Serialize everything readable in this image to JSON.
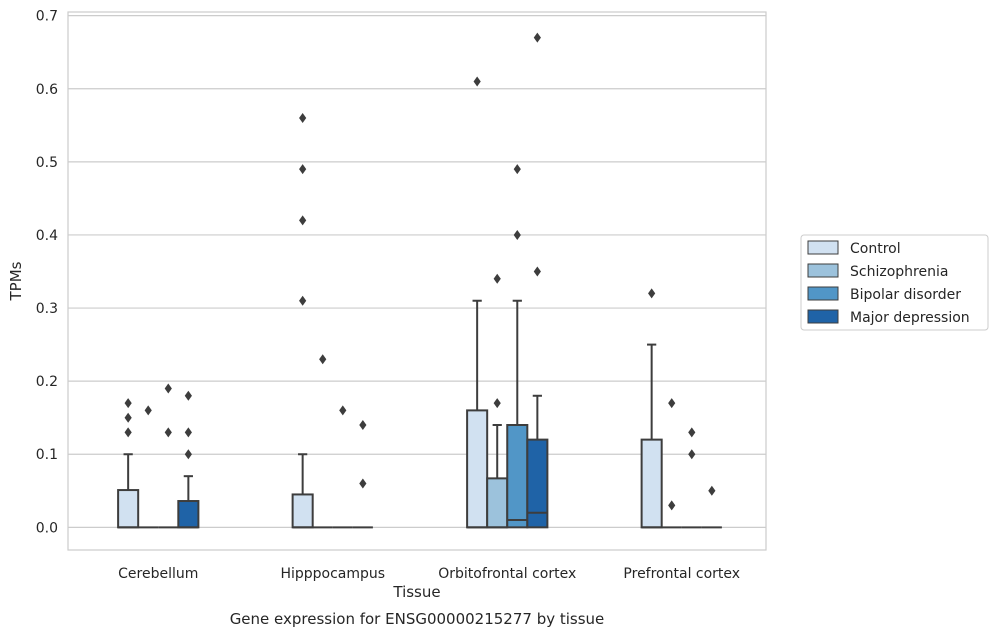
{
  "chart_data": {
    "type": "box",
    "title": "",
    "caption": "Gene expression for ENSG00000215277 by tissue",
    "xlabel": "Tissue",
    "ylabel": "TPMs",
    "ylim": [
      -0.031,
      0.705
    ],
    "yticks": [
      0.0,
      0.1,
      0.2,
      0.3,
      0.4,
      0.5,
      0.6,
      0.7
    ],
    "ytick_labels": [
      "0.0",
      "0.1",
      "0.2",
      "0.3",
      "0.4",
      "0.5",
      "0.6",
      "0.7"
    ],
    "grid": "y",
    "legend_position": "right",
    "categories": [
      "Cerebellum",
      "Hipppocampus",
      "Orbitofrontal cortex",
      "Prefrontal cortex"
    ],
    "series": [
      {
        "name": "Control",
        "color": "#d1e1f1",
        "boxes": [
          {
            "q1": 0.0,
            "median": 0.0,
            "q3": 0.051,
            "whisker_low": 0.0,
            "whisker_high": 0.1,
            "outliers": [
              0.13,
              0.15,
              0.17
            ]
          },
          {
            "q1": 0.0,
            "median": 0.0,
            "q3": 0.045,
            "whisker_low": 0.0,
            "whisker_high": 0.1,
            "outliers": [
              0.31,
              0.42,
              0.49,
              0.56
            ]
          },
          {
            "q1": 0.0,
            "median": 0.0,
            "q3": 0.16,
            "whisker_low": 0.0,
            "whisker_high": 0.31,
            "outliers": [
              0.61
            ]
          },
          {
            "q1": 0.0,
            "median": 0.0,
            "q3": 0.12,
            "whisker_low": 0.0,
            "whisker_high": 0.25,
            "outliers": [
              0.32
            ]
          }
        ]
      },
      {
        "name": "Schizophrenia",
        "color": "#9cc2dc",
        "boxes": [
          {
            "q1": 0.0,
            "median": 0.0,
            "q3": 0.0,
            "whisker_low": 0.0,
            "whisker_high": 0.0,
            "outliers": [
              0.16
            ]
          },
          {
            "q1": 0.0,
            "median": 0.0,
            "q3": 0.0,
            "whisker_low": 0.0,
            "whisker_high": 0.0,
            "outliers": [
              0.23
            ]
          },
          {
            "q1": 0.0,
            "median": 0.0,
            "q3": 0.067,
            "whisker_low": 0.0,
            "whisker_high": 0.14,
            "outliers": [
              0.17,
              0.34
            ]
          },
          {
            "q1": 0.0,
            "median": 0.0,
            "q3": 0.0,
            "whisker_low": 0.0,
            "whisker_high": 0.0,
            "outliers": [
              0.03,
              0.17
            ]
          }
        ]
      },
      {
        "name": "Bipolar disorder",
        "color": "#5196c7",
        "boxes": [
          {
            "q1": 0.0,
            "median": 0.0,
            "q3": 0.0,
            "whisker_low": 0.0,
            "whisker_high": 0.0,
            "outliers": [
              0.13,
              0.19
            ]
          },
          {
            "q1": 0.0,
            "median": 0.0,
            "q3": 0.0,
            "whisker_low": 0.0,
            "whisker_high": 0.0,
            "outliers": [
              0.16
            ]
          },
          {
            "q1": 0.0,
            "median": 0.01,
            "q3": 0.14,
            "whisker_low": 0.0,
            "whisker_high": 0.31,
            "outliers": [
              0.4,
              0.49
            ]
          },
          {
            "q1": 0.0,
            "median": 0.0,
            "q3": 0.0,
            "whisker_low": 0.0,
            "whisker_high": 0.0,
            "outliers": [
              0.1,
              0.13
            ]
          }
        ]
      },
      {
        "name": "Major depression",
        "color": "#1f63a7",
        "boxes": [
          {
            "q1": 0.0,
            "median": 0.0,
            "q3": 0.036,
            "whisker_low": 0.0,
            "whisker_high": 0.07,
            "outliers": [
              0.1,
              0.13,
              0.18
            ]
          },
          {
            "q1": 0.0,
            "median": 0.0,
            "q3": 0.0,
            "whisker_low": 0.0,
            "whisker_high": 0.0,
            "outliers": [
              0.06,
              0.14
            ]
          },
          {
            "q1": 0.0,
            "median": 0.02,
            "q3": 0.12,
            "whisker_low": 0.0,
            "whisker_high": 0.18,
            "outliers": [
              0.35,
              0.67
            ]
          },
          {
            "q1": 0.0,
            "median": 0.0,
            "q3": 0.0,
            "whisker_low": 0.0,
            "whisker_high": 0.0,
            "outliers": [
              0.05
            ]
          }
        ]
      }
    ]
  }
}
